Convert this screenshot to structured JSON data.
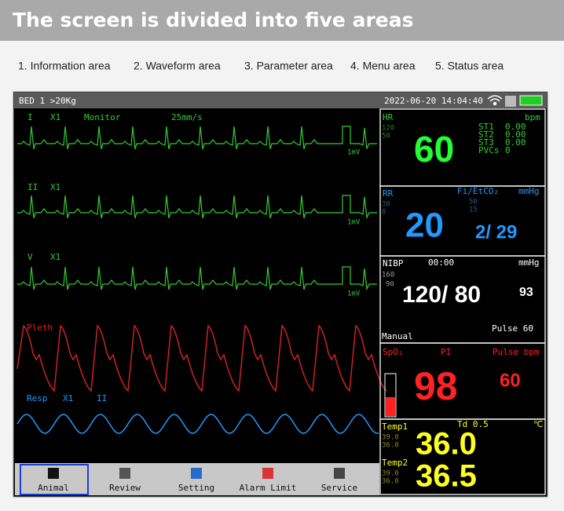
{
  "header": {
    "title": "The screen is divided into five areas"
  },
  "areas": [
    "1. Information area",
    "2. Waveform area",
    "3. Parameter area",
    "4. Menu area",
    "5. Status area"
  ],
  "monitor": {
    "info": {
      "bed": "BED 1 >20Kg",
      "datetime": "2022-06-20 14:04:40"
    },
    "waveforms": [
      {
        "label": "I",
        "gain": "X1",
        "mode": "Monitor",
        "speed": "25mm/s",
        "scale": "1mV"
      },
      {
        "label": "II",
        "gain": "X1",
        "scale": "1mV"
      },
      {
        "label": "V",
        "gain": "X1",
        "scale": "1mV"
      },
      {
        "label": "Pleth"
      },
      {
        "label": "Resp",
        "gain": "X1",
        "lead": "II"
      }
    ],
    "hr": {
      "label": "HR",
      "unit": "bpm",
      "high": "120",
      "low": "50",
      "value": "60",
      "st": [
        [
          "ST1",
          "0.00"
        ],
        [
          "ST2",
          "0.00"
        ],
        [
          "ST3",
          "0.00"
        ],
        [
          "PVCs",
          "0"
        ]
      ]
    },
    "rr": {
      "label": "RR",
      "co2_label": "Fi/EtCO₂",
      "unit": "mmHg",
      "high": "30",
      "low": "8",
      "co2_high": "50",
      "co2_low": "15",
      "value": "20",
      "co2": "2/ 29"
    },
    "nibp": {
      "label": "NIBP",
      "time": "00:00",
      "unit": "mmHg",
      "high": "160",
      "low": "90",
      "value": "120/ 80",
      "mean": "93",
      "mode": "Manual",
      "pulse": "Pulse 60"
    },
    "spo2": {
      "label": "SpO₂",
      "pi": "PI",
      "pulse_label": "Pulse bpm",
      "value": "98",
      "pulse": "60"
    },
    "temp": {
      "t1": "Temp1",
      "td": "Td 0.5",
      "unit": "℃",
      "t1_high": "39.0",
      "t1_low": "36.0",
      "t1_value": "36.0",
      "t2": "Temp2",
      "t2_high": "39.0",
      "t2_low": "36.0",
      "t2_value": "36.5"
    },
    "menu": [
      "Animal",
      "Review",
      "Setting",
      "Alarm Limit",
      "Service"
    ]
  }
}
